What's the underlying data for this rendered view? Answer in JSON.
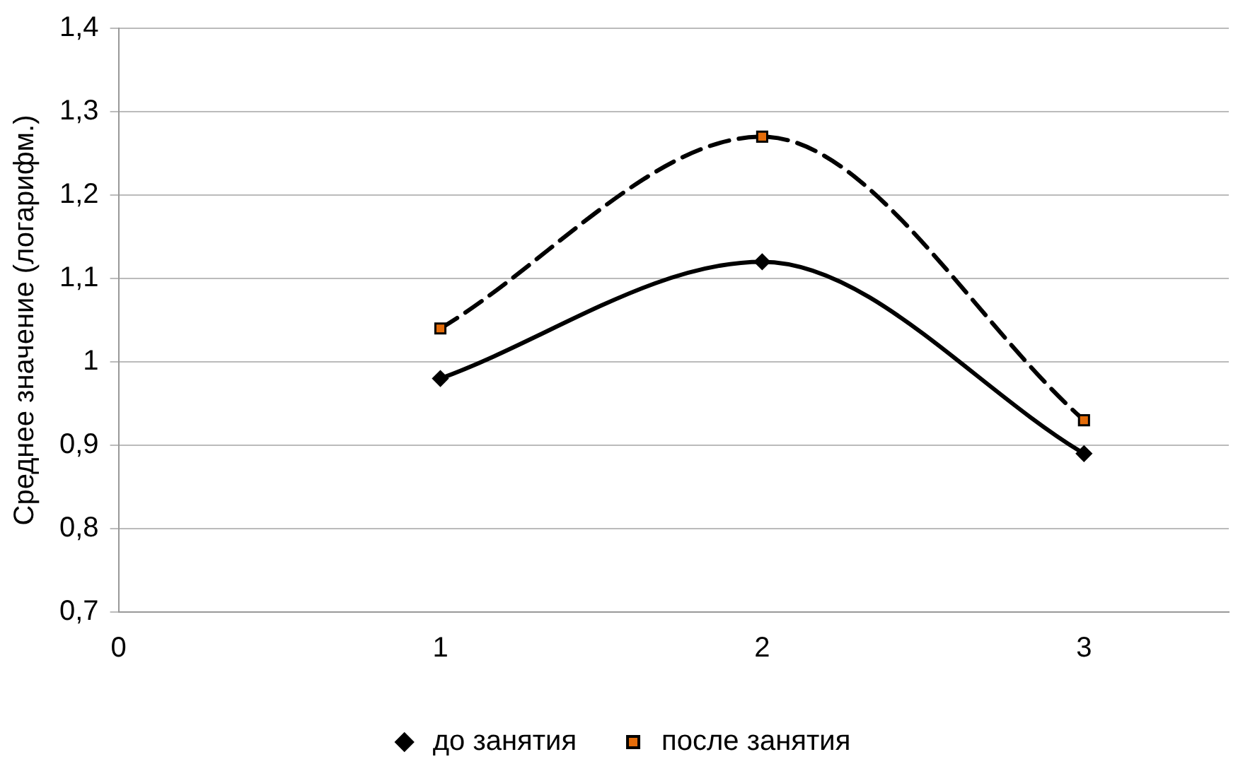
{
  "chart_data": {
    "type": "line",
    "ylabel": "Среднее значение (логарифм.)",
    "x": [
      1,
      2,
      3
    ],
    "series": [
      {
        "name": "до занятия",
        "color": "#000000",
        "values": [
          0.98,
          1.12,
          0.89
        ],
        "marker": "diamond",
        "line_style": "solid"
      },
      {
        "name": "после занятия",
        "color": "#000000",
        "colors": [
          "#e46c0a",
          "#e46c0a",
          "#e46c0a"
        ],
        "values": [
          1.04,
          1.27,
          0.93
        ],
        "marker": "square",
        "line_style": "dashed"
      }
    ],
    "xlim": [
      0,
      3.45
    ],
    "xticks": [
      0,
      1,
      2,
      3
    ],
    "ylim": [
      0.7,
      1.4
    ],
    "yticks": [
      {
        "value": 0.7,
        "label": "0,7"
      },
      {
        "value": 0.8,
        "label": "0,8"
      },
      {
        "value": 0.9,
        "label": "0,9"
      },
      {
        "value": 1,
        "label": "1"
      },
      {
        "value": 1.1,
        "label": "1,1"
      },
      {
        "value": 1.2,
        "label": "1,2"
      },
      {
        "value": 1.3,
        "label": "1,3"
      },
      {
        "value": 1.4,
        "label": "1,4"
      }
    ],
    "grid": "y",
    "legend": "bottom"
  }
}
